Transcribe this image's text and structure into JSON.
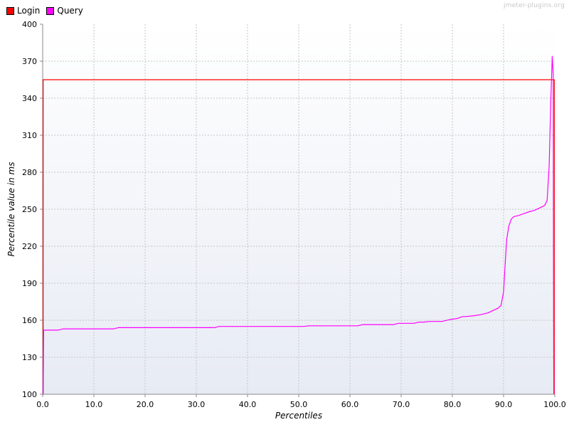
{
  "watermark": "jmeter-plugins.org",
  "colors": {
    "Login": "#ff0000",
    "Query": "#ff00ff"
  },
  "chart_data": {
    "type": "line",
    "xlabel": "Percentiles",
    "ylabel": "Percentile value in ms",
    "xlim": [
      0,
      100
    ],
    "ylim": [
      100,
      400
    ],
    "xticks": [
      "0.0",
      "10.0",
      "20.0",
      "30.0",
      "40.0",
      "50.0",
      "60.0",
      "70.0",
      "80.0",
      "90.0",
      "100.0"
    ],
    "yticks": [
      "100",
      "130",
      "160",
      "190",
      "220",
      "250",
      "280",
      "310",
      "340",
      "370",
      "400"
    ],
    "grid": true,
    "legend_position": "top-left",
    "series": [
      {
        "name": "Login",
        "color": "#ff0000",
        "x": [
          0.1,
          0.1,
          99.9,
          99.9
        ],
        "y": [
          100,
          355,
          355,
          100
        ]
      },
      {
        "name": "Query",
        "color": "#ff00ff",
        "x": [
          0.1,
          0.2,
          3,
          4,
          13.8,
          14.8,
          33.5,
          34.5,
          51,
          52,
          61.5,
          62.5,
          68.5,
          69.5,
          72.5,
          73.5,
          74.5,
          75.5,
          78,
          79.5,
          81,
          82,
          82.5,
          84,
          85.5,
          87,
          88,
          89,
          89.5,
          90,
          90.3,
          90.6,
          91,
          91.5,
          92,
          93,
          94,
          95,
          96,
          97,
          98,
          98.5,
          98.9,
          99.2,
          99.5,
          99.7,
          99.75,
          99.8
        ],
        "y": [
          100,
          152,
          152,
          153,
          153,
          154,
          154,
          155,
          155,
          155.5,
          155.5,
          156.5,
          156.5,
          157.5,
          157.5,
          158.5,
          158.5,
          159,
          159,
          160.5,
          161.5,
          163,
          163,
          163.5,
          164.5,
          166,
          168,
          170,
          172,
          183,
          205,
          225,
          236,
          242,
          244,
          245,
          246.5,
          248,
          249,
          251,
          253,
          257,
          285,
          333,
          374,
          360,
          200,
          100
        ]
      }
    ]
  }
}
